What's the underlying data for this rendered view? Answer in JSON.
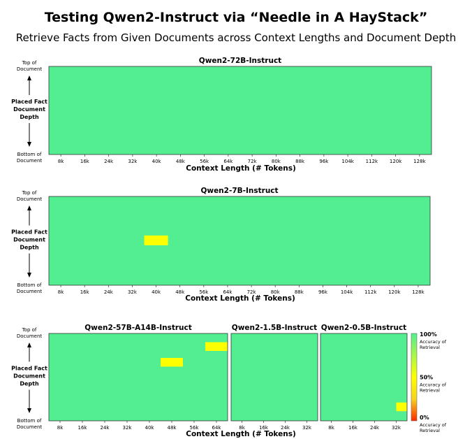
{
  "title": "Testing Qwen2-Instruct via “Needle in A HayStack”",
  "subtitle": "Retrieve Facts from Given Documents across Context Lengths and Document Depth",
  "depth_axis": {
    "top": [
      "Top of",
      "Document"
    ],
    "middle": [
      "Placed Fact",
      "Document",
      "Depth"
    ],
    "bottom": [
      "Bottom of",
      "Document"
    ]
  },
  "colorbar": {
    "ticks": [
      "100%",
      "50%",
      "0%"
    ],
    "label": [
      "Accuracy of",
      "Retrieval"
    ]
  },
  "colors": {
    "full": "#52ee91",
    "partial": "#ffff00",
    "mid": "#f7d31d",
    "zero": "#ff2a00"
  },
  "chart_data": [
    {
      "type": "heatmap",
      "title": "Qwen2-72B-Instruct",
      "xlabel": "Context Length (# Tokens)",
      "x_ticks": [
        "8k",
        "16k",
        "24k",
        "32k",
        "40k",
        "48k",
        "56k",
        "64k",
        "72k",
        "80k",
        "88k",
        "96k",
        "104k",
        "112k",
        "120k",
        "128k"
      ],
      "x_max_k": 128,
      "default_accuracy": 1.0,
      "cells": []
    },
    {
      "type": "heatmap",
      "title": "Qwen2-7B-Instruct",
      "xlabel": "Context Length (# Tokens)",
      "x_ticks": [
        "8k",
        "16k",
        "24k",
        "32k",
        "40k",
        "48k",
        "56k",
        "64k",
        "72k",
        "80k",
        "88k",
        "96k",
        "104k",
        "112k",
        "120k",
        "128k"
      ],
      "x_max_k": 128,
      "default_accuracy": 1.0,
      "cells": [
        {
          "context_k": [
            32,
            40
          ],
          "depth_pct": [
            44,
            55
          ],
          "accuracy": 0.5
        }
      ]
    },
    {
      "type": "heatmap",
      "title": "Qwen2-57B-A14B-Instruct",
      "xlabel": "Context Length (# Tokens)",
      "x_ticks": [
        "8k",
        "16k",
        "24k",
        "32k",
        "40k",
        "48k",
        "56k",
        "64k"
      ],
      "x_max_k": 64,
      "default_accuracy": 1.0,
      "cells": [
        {
          "context_k": [
            40,
            48
          ],
          "depth_pct": [
            28,
            38
          ],
          "accuracy": 0.5
        },
        {
          "context_k": [
            56,
            64
          ],
          "depth_pct": [
            10,
            20
          ],
          "accuracy": 0.5
        }
      ]
    },
    {
      "type": "heatmap",
      "title": "Qwen2-1.5B-Instruct",
      "xlabel": "Context Length (# Tokens)",
      "x_ticks": [
        "8k",
        "16k",
        "24k",
        "32k"
      ],
      "x_max_k": 32,
      "default_accuracy": 1.0,
      "cells": []
    },
    {
      "type": "heatmap",
      "title": "Qwen2-0.5B-Instruct",
      "xlabel": "Context Length (# Tokens)",
      "x_ticks": [
        "8k",
        "16k",
        "24k",
        "32k"
      ],
      "x_max_k": 32,
      "default_accuracy": 1.0,
      "cells": [
        {
          "context_k": [
            28,
            36
          ],
          "depth_pct": [
            79,
            89
          ],
          "accuracy": 0.5
        }
      ]
    }
  ]
}
